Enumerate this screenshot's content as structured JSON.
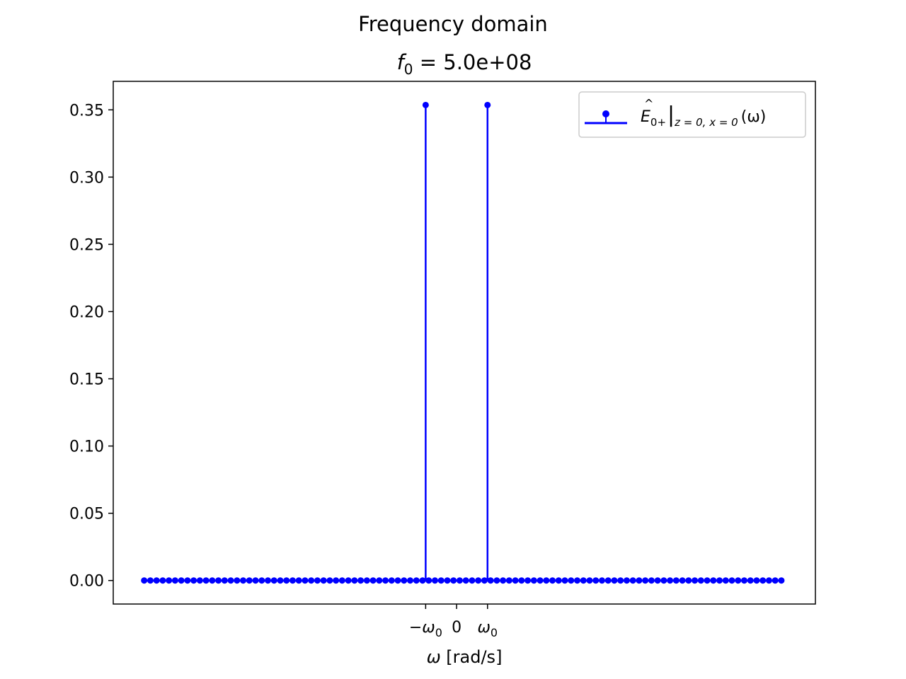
{
  "figure": {
    "suptitle": "Frequency domain",
    "title_var": "f",
    "title_sub": "0",
    "title_rest": " = 5.0e+08"
  },
  "chart_data": {
    "type": "stem",
    "xlabel_var": "ω",
    "xlabel_rest": " [rad/s]",
    "x_ticks": [
      {
        "x": -1,
        "label_prefix": "−ω",
        "label_sub": "0"
      },
      {
        "x": 0,
        "label_prefix": "0",
        "label_sub": ""
      },
      {
        "x": 1,
        "label_prefix": "ω",
        "label_sub": "0"
      }
    ],
    "y_ticks": [
      "0.00",
      "0.05",
      "0.10",
      "0.15",
      "0.20",
      "0.25",
      "0.30",
      "0.35"
    ],
    "ylim": [
      -0.0175,
      0.3712
    ],
    "xlim": [
      -11.1,
      11.6
    ],
    "grid": false,
    "legend": {
      "placement": "top-right",
      "hat_letter": "E",
      "sub1": "0+",
      "sub2": "z = 0, x = 0",
      "suffix": "(ω)"
    },
    "color": "#0000ff",
    "x_values": [
      -10.1,
      -9.9,
      -9.7,
      -9.5,
      -9.3,
      -9.1,
      -8.9,
      -8.7,
      -8.5,
      -8.3,
      -8.1,
      -7.9,
      -7.7,
      -7.5,
      -7.3,
      -7.1,
      -6.9,
      -6.7,
      -6.5,
      -6.3,
      -6.1,
      -5.9,
      -5.7,
      -5.5,
      -5.3,
      -5.1,
      -4.9,
      -4.7,
      -4.5,
      -4.3,
      -4.1,
      -3.9,
      -3.7,
      -3.5,
      -3.3,
      -3.1,
      -2.9,
      -2.7,
      -2.5,
      -2.3,
      -2.1,
      -1.9,
      -1.7,
      -1.5,
      -1.3,
      -1.1,
      -0.9,
      -0.7,
      -0.5,
      -0.3,
      -0.1,
      0.1,
      0.3,
      0.5,
      0.7,
      0.9,
      1.1,
      1.3,
      1.5,
      1.7,
      1.9,
      2.1,
      2.3,
      2.5,
      2.7,
      2.9,
      3.1,
      3.3,
      3.5,
      3.7,
      3.9,
      4.1,
      4.3,
      4.5,
      4.7,
      4.9,
      5.1,
      5.3,
      5.5,
      5.7,
      5.9,
      6.1,
      6.3,
      6.5,
      6.7,
      6.9,
      7.1,
      7.3,
      7.5,
      7.7,
      7.9,
      8.1,
      8.3,
      8.5,
      8.7,
      8.9,
      9.1,
      9.3,
      9.5,
      9.7,
      9.9,
      10.1,
      10.3,
      10.5
    ],
    "peaks": [
      {
        "x": -1.0,
        "y": 0.3536
      },
      {
        "x": 1.0,
        "y": 0.3536
      }
    ]
  }
}
